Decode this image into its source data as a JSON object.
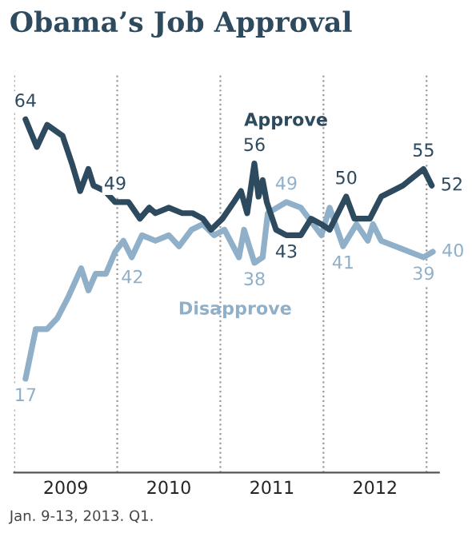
{
  "chart_data": {
    "type": "line",
    "title": "Obama’s Job Approval",
    "x": [
      2009.11,
      2009.22,
      2009.32,
      2009.47,
      2009.56,
      2009.64,
      2009.72,
      2009.77,
      2009.88,
      2009.98,
      2010.11,
      2010.22,
      2010.31,
      2010.37,
      2010.5,
      2010.63,
      2010.73,
      2010.83,
      2010.91,
      2011.02,
      2011.13,
      2011.2,
      2011.26,
      2011.33,
      2011.37,
      2011.41,
      2011.45,
      2011.54,
      2011.64,
      2011.78,
      2011.88,
      2011.98,
      2012.06,
      2012.22,
      2012.3,
      2012.45,
      2012.56,
      2012.77,
      2012.97,
      2013.05
    ],
    "series": [
      {
        "name": "Approve",
        "color": "#2d4a5f",
        "values": [
          64,
          59,
          63,
          61,
          56,
          51,
          55,
          52,
          51,
          49,
          49,
          46,
          48,
          47,
          48,
          47,
          47,
          46,
          44,
          46,
          49,
          51,
          47,
          56,
          50,
          53,
          49,
          44,
          43,
          43,
          46,
          45,
          44,
          50,
          46,
          46,
          50,
          52,
          55,
          52
        ],
        "value_labels": [
          "64",
          null,
          null,
          null,
          null,
          null,
          null,
          null,
          null,
          "49",
          null,
          null,
          null,
          null,
          null,
          null,
          null,
          null,
          null,
          null,
          null,
          null,
          null,
          "56",
          null,
          null,
          null,
          null,
          "43",
          null,
          null,
          null,
          null,
          "50",
          null,
          null,
          null,
          null,
          "55",
          "52"
        ]
      },
      {
        "name": "Disapprove",
        "color": "#8fb0c8",
        "x": [
          2009.11,
          2009.21,
          2009.32,
          2009.42,
          2009.53,
          2009.65,
          2009.72,
          2009.79,
          2009.89,
          2009.98,
          2010.06,
          2010.14,
          2010.24,
          2010.37,
          2010.5,
          2010.6,
          2010.72,
          2010.83,
          2010.94,
          2011.04,
          2011.18,
          2011.23,
          2011.33,
          2011.41,
          2011.46,
          2011.64,
          2011.78,
          2011.98,
          2012.06,
          2012.19,
          2012.32,
          2012.43,
          2012.48,
          2012.56,
          2012.97,
          2013.06
        ],
        "values": [
          17,
          26,
          26,
          28,
          32,
          37,
          33,
          36,
          36,
          40,
          42,
          39,
          43,
          42,
          43,
          41,
          44,
          45,
          43,
          44,
          39,
          44,
          38,
          39,
          47,
          49,
          48,
          43,
          48,
          41,
          45,
          42,
          45,
          42,
          39,
          40
        ],
        "value_labels": [
          "17",
          null,
          null,
          null,
          null,
          null,
          null,
          null,
          null,
          null,
          "42",
          null,
          null,
          null,
          null,
          null,
          null,
          null,
          null,
          null,
          null,
          null,
          "38",
          null,
          null,
          "49",
          null,
          null,
          null,
          "41",
          null,
          null,
          null,
          null,
          "39",
          "40"
        ]
      }
    ],
    "xlim": [
      2009,
      2013.12
    ],
    "xticks": [
      {
        "value": 2009.5,
        "label": "2009"
      },
      {
        "value": 2010.5,
        "label": "2010"
      },
      {
        "value": 2011.5,
        "label": "2011"
      },
      {
        "value": 2012.5,
        "label": "2012"
      }
    ],
    "ylim": [
      0,
      72
    ],
    "tick_labels": "x",
    "grid": false,
    "legend": false,
    "line_style": "solid",
    "marker": "none",
    "ref_lines": [
      {
        "axis": "x",
        "value": 2009,
        "color": "#999999",
        "line_style": "dotted"
      },
      {
        "axis": "x",
        "value": 2010,
        "color": "#999999",
        "line_style": "dotted"
      },
      {
        "axis": "x",
        "value": 2011,
        "color": "#999999",
        "line_style": "dotted"
      },
      {
        "axis": "x",
        "value": 2012,
        "color": "#999999",
        "line_style": "dotted"
      },
      {
        "axis": "x",
        "value": 2013,
        "color": "#999999",
        "line_style": "dotted"
      }
    ],
    "annotations": [
      "Jan. 9-13, 2013. Q1."
    ]
  }
}
